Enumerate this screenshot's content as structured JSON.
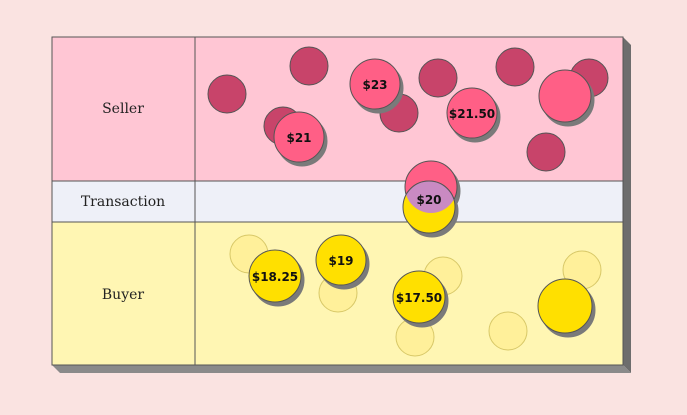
{
  "rows": [
    {
      "label": "Seller",
      "fill": "#ffc6d4"
    },
    {
      "label": "Transaction",
      "fill": "#eef0f8"
    },
    {
      "label": "Buyer",
      "fill": "#fff6b3"
    }
  ],
  "colors": {
    "seller_dark": "#c8446a",
    "seller_bright": "#ff5f86",
    "buyer_faded": "#fff09a",
    "buyer_bright": "#ffe000",
    "transaction_overlap": "#c98ac2",
    "border": "#555555",
    "shadow": "#7a7a7a"
  },
  "seller_prices": [
    "$23",
    "$21",
    "$21.50"
  ],
  "transaction_price": "$20",
  "buyer_prices": [
    "$18.25",
    "$19",
    "$17.50"
  ]
}
